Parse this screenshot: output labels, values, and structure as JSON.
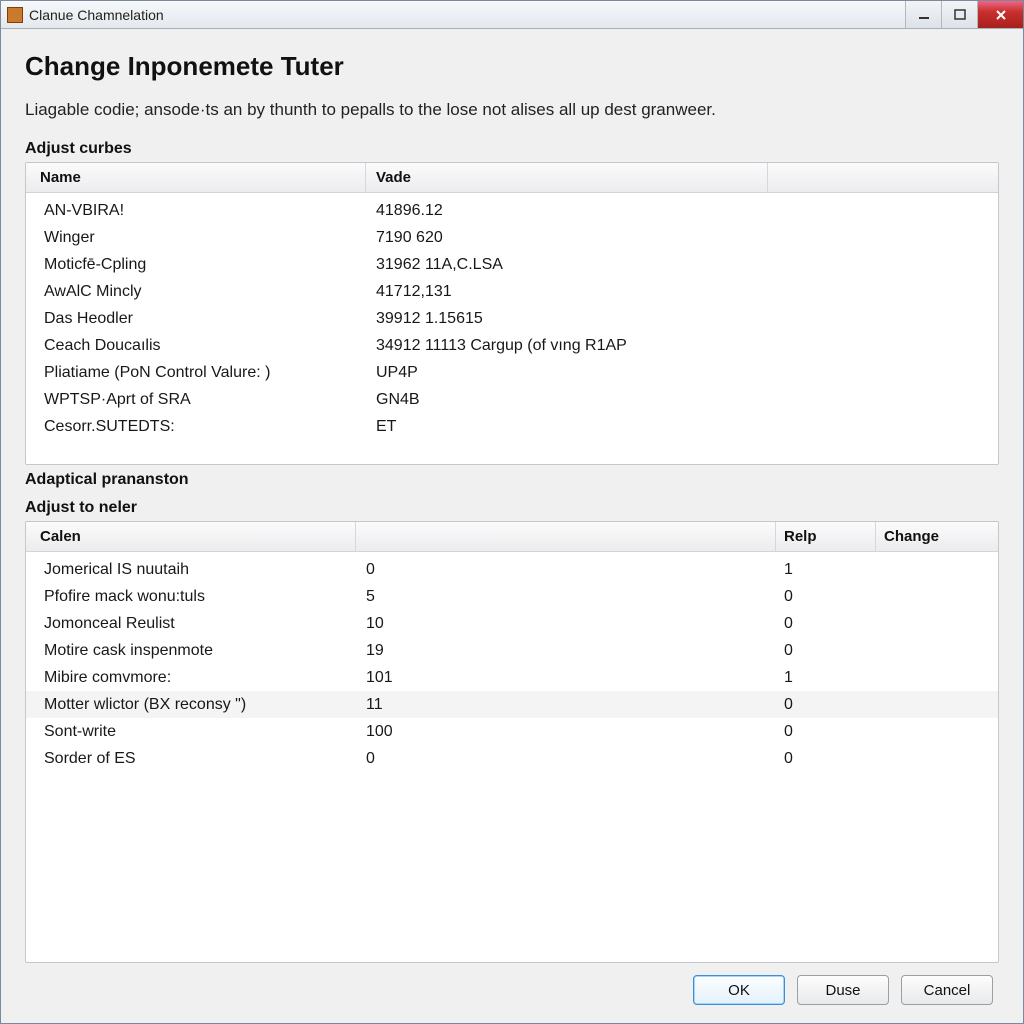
{
  "window": {
    "title": "Clanue Chamnelation"
  },
  "header": {
    "heading": "Change Inponemete Tuter",
    "description": "Liagable codie; ansode·ts an by thunth to pepalls to the lose not alises all up dest granweer."
  },
  "section1": {
    "label": "Adjust curbes",
    "columns": {
      "name": "Name",
      "vade": "Vade"
    },
    "rows": [
      {
        "name": "AN-VBIRA!",
        "vade": "41896.12"
      },
      {
        "name": "Winger",
        "vade": "7190 620"
      },
      {
        "name": "Moticfē-Cpling",
        "vade": "31962 11A,C.LSA"
      },
      {
        "name": "AwAlC Mincly",
        "vade": "41712,131"
      },
      {
        "name": "Das Heodler",
        "vade": "39912 1.15615"
      },
      {
        "name": "Ceach Doucaılis",
        "vade": "34912 11113 Cargup (of vıng R1AP"
      },
      {
        "name": "Pliatiame (PoN Control Valure: )",
        "vade": "UP4P"
      },
      {
        "name": "WPTSP·Aprt of SRA",
        "vade": "GN4B"
      },
      {
        "name": "Cesorr.SUTEDTS:",
        "vade": "ET"
      }
    ]
  },
  "section2a": {
    "label": "Adaptical prananston"
  },
  "section2": {
    "label": "Adjust to neler",
    "columns": {
      "calen": "Calen",
      "blank": "",
      "relp": "Relp",
      "change": "Change"
    },
    "rows": [
      {
        "calen": "Jomerical IS nuutaih",
        "v": "0",
        "relp": "1",
        "change": ""
      },
      {
        "calen": "Pfofire mack wonu:tuls",
        "v": "5",
        "relp": "0",
        "change": ""
      },
      {
        "calen": "Jomonceal Reulist",
        "v": "10",
        "relp": "0",
        "change": ""
      },
      {
        "calen": "Motire cask inspenmote",
        "v": "19",
        "relp": "0",
        "change": ""
      },
      {
        "calen": "Mibire comvmore:",
        "v": "101",
        "relp": "1",
        "change": ""
      },
      {
        "calen": "Motter wlictor (BX reconsy \")",
        "v": "11",
        "relp": "0",
        "change": "",
        "selected": true
      },
      {
        "calen": "Sont-write",
        "v": "100",
        "relp": "0",
        "change": ""
      },
      {
        "calen": "Sorder of ES",
        "v": "0",
        "relp": "0",
        "change": ""
      }
    ]
  },
  "buttons": {
    "ok": "OK",
    "duse": "Duse",
    "cancel": "Cancel"
  },
  "colors": {
    "window_bg": "#f0f0f0",
    "panel_bg": "#ffffff",
    "border": "#c4c8cc",
    "header_grad_top": "#fbfbfc",
    "header_grad_bot": "#ececee",
    "close_red": "#c8302c",
    "primary_border": "#3b8fd8"
  }
}
